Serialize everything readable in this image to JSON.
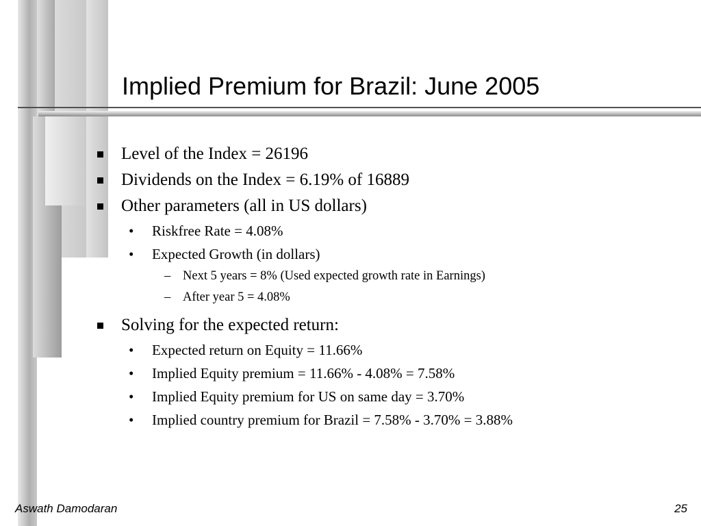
{
  "slide": {
    "title": "Implied Premium for Brazil: June 2005",
    "bullets": [
      "Level of the Index =  26196",
      "Dividends on the Index = 6.19% of 16889",
      "Other parameters (all in US dollars)"
    ],
    "other_params": [
      "Riskfree Rate = 4.08%",
      "Expected Growth (in  dollars)"
    ],
    "growth_details": [
      "Next 5 years = 8% (Used expected growth rate in Earnings)",
      "After year 5 =  4.08%"
    ],
    "solving_heading": "Solving for the expected return:",
    "solving_points": [
      "Expected return on Equity = 11.66%",
      "Implied Equity premium = 11.66% - 4.08% = 7.58%",
      "Implied Equity premium for US on same day = 3.70%",
      "Implied country premium for Brazil = 7.58% - 3.70% = 3.88%"
    ]
  },
  "footer": {
    "author": "Aswath Damodaran",
    "page_number": "25"
  }
}
